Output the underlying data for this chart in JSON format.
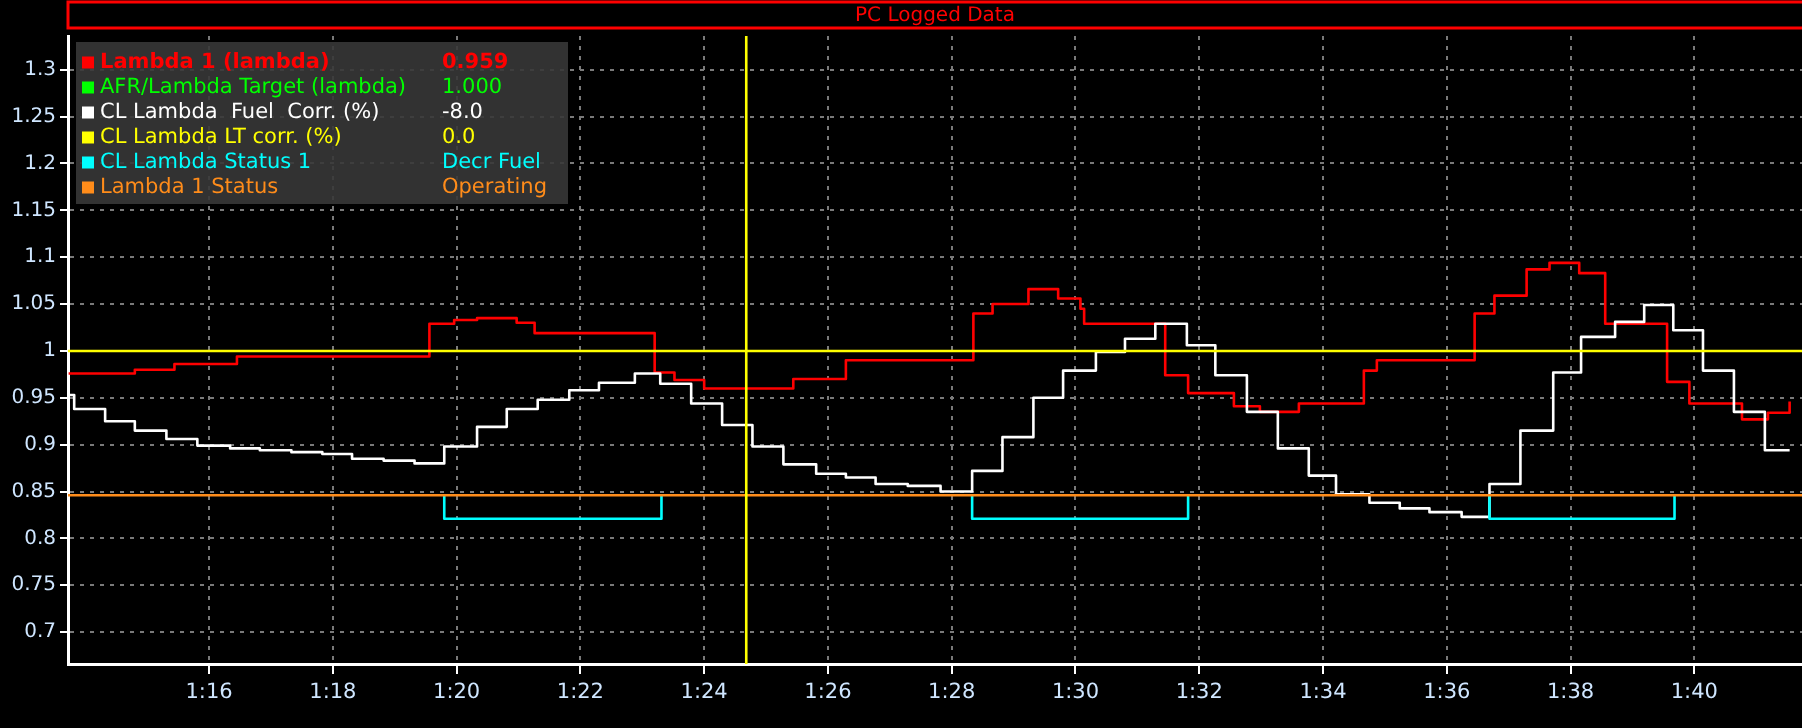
{
  "chart_data": {
    "type": "step",
    "title": "PC Logged Data",
    "legend": "top left",
    "grid": true,
    "line_style": "solid",
    "marker": "none",
    "xlim": [
      73.72,
      101.74
    ],
    "xticks": [
      {
        "value": 76,
        "label": "1:16"
      },
      {
        "value": 78,
        "label": "1:18"
      },
      {
        "value": 80,
        "label": "1:20"
      },
      {
        "value": 82,
        "label": "1:22"
      },
      {
        "value": 84,
        "label": "1:24"
      },
      {
        "value": 86,
        "label": "1:26"
      },
      {
        "value": 88,
        "label": "1:28"
      },
      {
        "value": 90,
        "label": "1:30"
      },
      {
        "value": 92,
        "label": "1:32"
      },
      {
        "value": 94,
        "label": "1:34"
      },
      {
        "value": 96,
        "label": "1:36"
      },
      {
        "value": 98,
        "label": "1:38"
      },
      {
        "value": 100,
        "label": "1:40"
      }
    ],
    "ylim": [
      0.666,
      1.336
    ],
    "yticks": [
      0.7,
      0.75,
      0.8,
      0.85,
      0.9,
      0.95,
      1,
      1.05,
      1.1,
      1.15,
      1.2,
      1.25,
      1.3
    ],
    "ref_lines": [
      {
        "axis": "x",
        "value": 84.68,
        "color": "#ffff00"
      }
    ],
    "annotations": [
      "0.959",
      "1.000",
      "-8.0",
      "0.0",
      "Decr Fuel",
      "Operating"
    ],
    "series": [
      {
        "name": "Lambda 1 (lambda)",
        "color": "#ff0000",
        "x": [
          73.73,
          74.27,
          74.8,
          75.44,
          76.45,
          79.37,
          79.56,
          79.96,
          80.33,
          80.97,
          81.26,
          83.07,
          83.2,
          83.52,
          84,
          84.8,
          85.44,
          86.29,
          87.29,
          88.14,
          88.35,
          88.66,
          89.24,
          89.72,
          90.08,
          90.14,
          91.29,
          91.45,
          91.82,
          92.56,
          92.98,
          93.61,
          94.66,
          94.87,
          96.24,
          96.45,
          96.77,
          97.29,
          97.66,
          98.14,
          98.56,
          99.4,
          99.56,
          99.92,
          100.77,
          101.19,
          101.54
        ],
        "values": [
          0.976,
          0.976,
          0.98,
          0.986,
          0.994,
          0.994,
          1.029,
          1.033,
          1.035,
          1.03,
          1.019,
          1.019,
          0.977,
          0.969,
          0.96,
          0.96,
          0.97,
          0.99,
          0.99,
          0.99,
          1.04,
          1.05,
          1.066,
          1.056,
          1.045,
          1.029,
          1.029,
          0.974,
          0.955,
          0.941,
          0.935,
          0.944,
          0.979,
          0.99,
          0.99,
          1.04,
          1.059,
          1.087,
          1.094,
          1.083,
          1.029,
          1.029,
          0.967,
          0.944,
          0.927,
          0.934,
          0.946
        ]
      },
      {
        "name": "AFR/Lambda Target (lambda)",
        "color": "#00ff00"
      },
      {
        "name": "CL Lambda  Fuel  Corr. (%)",
        "color": "#ffffff",
        "x": [
          73.73,
          73.82,
          74.32,
          74.8,
          75.31,
          75.81,
          76.34,
          76.82,
          77.33,
          77.83,
          78.31,
          78.82,
          79.32,
          79.8,
          80.33,
          80.81,
          81.31,
          81.82,
          82.3,
          82.88,
          83.29,
          83.79,
          84.29,
          84.78,
          85.28,
          85.81,
          86.29,
          86.77,
          87.29,
          87.82,
          88.33,
          88.82,
          89.32,
          89.8,
          90.33,
          90.8,
          91.29,
          91.8,
          92.26,
          92.77,
          93.27,
          93.77,
          94.21,
          94.75,
          95.24,
          95.72,
          96.24,
          96.69,
          97.19,
          97.72,
          98.17,
          98.72,
          99.19,
          99.66,
          100.14,
          100.64,
          101.14,
          101.54
        ],
        "values": [
          0.953,
          0.938,
          0.925,
          0.915,
          0.906,
          0.899,
          0.896,
          0.894,
          0.892,
          0.89,
          0.885,
          0.883,
          0.88,
          0.898,
          0.919,
          0.938,
          0.948,
          0.958,
          0.966,
          0.976,
          0.965,
          0.944,
          0.921,
          0.898,
          0.879,
          0.869,
          0.865,
          0.858,
          0.856,
          0.85,
          0.872,
          0.908,
          0.95,
          0.979,
          0.999,
          1.013,
          1.029,
          1.006,
          0.974,
          0.935,
          0.896,
          0.867,
          0.847,
          0.838,
          0.832,
          0.828,
          0.823,
          0.858,
          0.915,
          0.977,
          1.015,
          1.031,
          1.049,
          1.022,
          0.979,
          0.935,
          0.894,
          0.894
        ]
      },
      {
        "name": "CL Lambda LT corr. (%)",
        "color": "#ffff00",
        "x": [
          73.72,
          101.74
        ],
        "values": [
          1,
          1
        ]
      },
      {
        "name": "CL Lambda Status 1",
        "color": "#00ffff",
        "x": [
          79.8,
          79.8,
          83.31,
          83.31,
          null,
          88.33,
          88.33,
          91.82,
          91.82,
          null,
          96.69,
          96.69,
          99.68,
          99.68
        ],
        "values": [
          0.846,
          0.821,
          0.821,
          0.846,
          null,
          0.846,
          0.821,
          0.821,
          0.846,
          null,
          0.846,
          0.821,
          0.821,
          0.846
        ]
      },
      {
        "name": "Lambda 1 Status",
        "color": "#ff8c1a",
        "x": [
          73.72,
          101.74
        ],
        "values": [
          0.846,
          0.846
        ]
      }
    ]
  }
}
